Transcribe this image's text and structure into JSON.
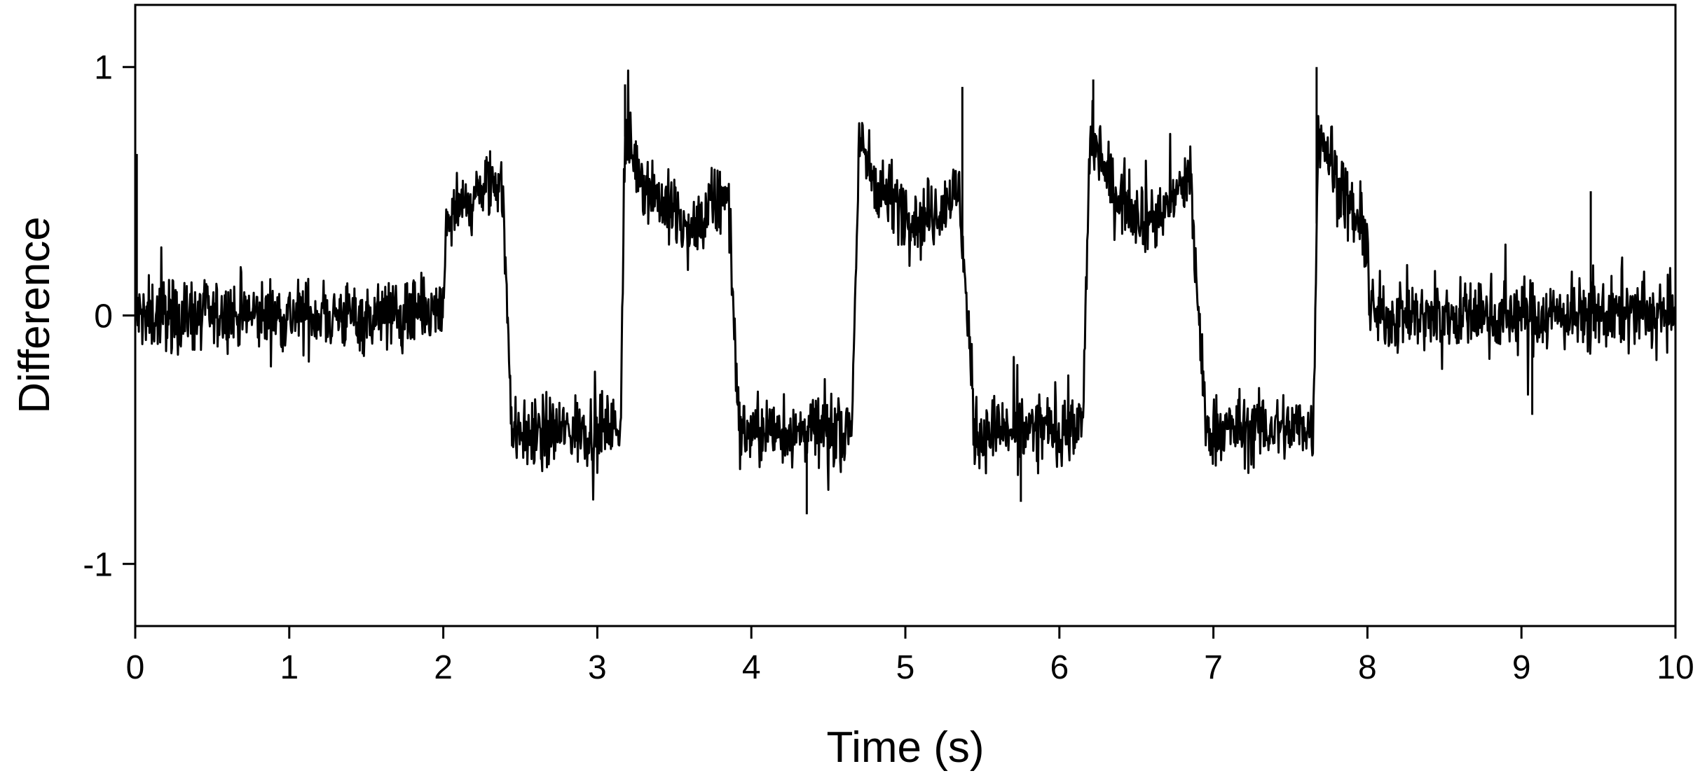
{
  "chart_data": {
    "type": "line",
    "title": "",
    "xlabel": "Time (s)",
    "ylabel": "Difference",
    "xlim": [
      0,
      10
    ],
    "ylim": [
      -1.25,
      1.25
    ],
    "xticks": [
      0,
      1,
      2,
      3,
      4,
      5,
      6,
      7,
      8,
      9,
      10
    ],
    "yticks": [
      -1,
      0,
      1
    ],
    "grid": false,
    "legend": "none",
    "line_color": "#000000",
    "series": [
      {
        "x": [
          0,
          2,
          2.02,
          2.3,
          2.38,
          2.45,
          3.15,
          3.18,
          3.3,
          3.6,
          3.85,
          3.92,
          4.65,
          4.7,
          4.85,
          5.1,
          5.35,
          5.45,
          6.15,
          6.2,
          6.35,
          6.6,
          6.85,
          6.95,
          7.65,
          7.68,
          7.8,
          7.95,
          8,
          8.02,
          10
        ],
        "y": [
          0,
          0,
          0.38,
          0.52,
          0.55,
          -0.48,
          -0.45,
          0.72,
          0.55,
          0.32,
          0.5,
          -0.47,
          -0.46,
          0.68,
          0.5,
          0.38,
          0.5,
          -0.47,
          -0.45,
          0.72,
          0.5,
          0.38,
          0.55,
          -0.46,
          -0.45,
          0.78,
          0.55,
          0.35,
          0.3,
          0,
          0
        ],
        "noise": 0.12,
        "spikes": [
          {
            "x": 0.01,
            "y": 0.65
          },
          {
            "x": 4.36,
            "y": -0.8
          },
          {
            "x": 9.45,
            "y": 0.5
          },
          {
            "x": 9.07,
            "y": -0.4
          },
          {
            "x": 5.37,
            "y": 0.92
          },
          {
            "x": 7.67,
            "y": 1.0
          },
          {
            "x": 6.22,
            "y": 0.95
          },
          {
            "x": 3.18,
            "y": 0.93
          },
          {
            "x": 5.75,
            "y": -0.75
          }
        ]
      }
    ]
  }
}
